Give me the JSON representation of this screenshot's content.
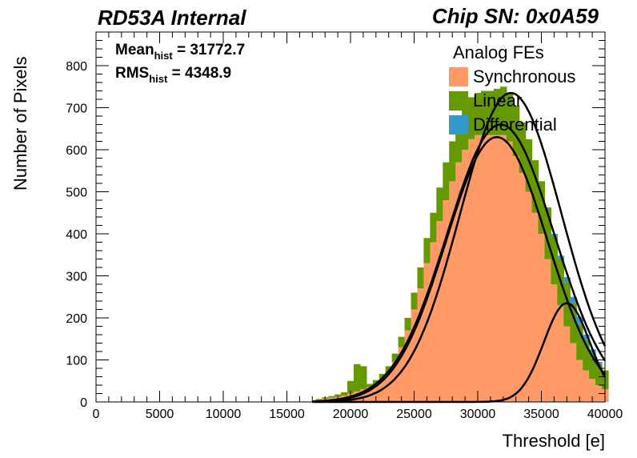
{
  "header": {
    "left_title": "RD53A Internal",
    "right_title": "Chip SN: 0x0A59"
  },
  "stats": {
    "mean_label": "Mean",
    "mean_sub": "hist",
    "mean_value": " = 31772.7",
    "rms_label": "RMS",
    "rms_sub": "hist",
    "rms_value": " = 4348.9"
  },
  "legend": {
    "title": "Analog FEs",
    "entries": [
      {
        "name": "Synchronous",
        "color": "#ff9966"
      },
      {
        "name": "Linear",
        "color": "#669900"
      },
      {
        "name": "Differential",
        "color": "#3399cc"
      }
    ]
  },
  "chart_data": {
    "type": "area",
    "xlabel": "Threshold [e]",
    "ylabel": "Number of Pixels",
    "xlim": [
      0,
      40000
    ],
    "ylim": [
      0,
      880
    ],
    "xticks": [
      0,
      5000,
      10000,
      15000,
      20000,
      25000,
      30000,
      35000,
      40000
    ],
    "yticks": [
      0,
      100,
      200,
      300,
      400,
      500,
      600,
      700,
      800
    ],
    "stacked": true,
    "x": [
      17500,
      18000,
      18500,
      19000,
      19500,
      20000,
      20500,
      21000,
      21500,
      22000,
      22500,
      23000,
      23500,
      24000,
      24500,
      25000,
      25500,
      26000,
      26500,
      27000,
      27500,
      28000,
      28500,
      29000,
      29500,
      30000,
      30500,
      31000,
      31500,
      32000,
      32500,
      33000,
      33500,
      34000,
      34500,
      35000,
      35500,
      36000,
      36500,
      37000,
      37500,
      38000,
      38500,
      39000,
      39500,
      40000
    ],
    "series": [
      {
        "name": "Synchronous",
        "values": [
          5,
          8,
          10,
          12,
          15,
          20,
          25,
          30,
          35,
          42,
          55,
          70,
          95,
          130,
          170,
          220,
          270,
          330,
          380,
          430,
          480,
          525,
          570,
          600,
          625,
          635,
          635,
          635,
          635,
          635,
          620,
          585,
          545,
          500,
          450,
          400,
          340,
          280,
          230,
          180,
          140,
          100,
          75,
          55,
          40,
          30
        ]
      },
      {
        "name": "Linear",
        "values": [
          2,
          3,
          4,
          6,
          8,
          30,
          65,
          55,
          8,
          10,
          12,
          15,
          20,
          25,
          30,
          40,
          50,
          60,
          70,
          80,
          90,
          95,
          100,
          100,
          100,
          100,
          105,
          105,
          110,
          115,
          115,
          120,
          120,
          125,
          125,
          125,
          120,
          115,
          110,
          105,
          95,
          85,
          70,
          60,
          50,
          45
        ]
      },
      {
        "name": "Differential",
        "values": [
          0,
          0,
          0,
          0,
          0,
          0,
          0,
          0,
          0,
          0,
          0,
          0,
          0,
          0,
          0,
          0,
          0,
          0,
          0,
          0,
          0,
          0,
          0,
          0,
          0,
          0,
          0,
          0,
          0,
          0,
          0,
          0,
          0,
          0,
          0,
          0,
          3,
          5,
          8,
          12,
          15,
          18,
          15,
          10,
          5,
          0
        ]
      }
    ],
    "fits": [
      {
        "name": "Synchronous fit",
        "mean": 31500,
        "sigma": 4000,
        "amplitude": 630
      },
      {
        "name": "Linear fit",
        "mean": 32600,
        "sigma": 4000,
        "amplitude": 735
      },
      {
        "name": "Combined fit",
        "mean": 31800,
        "sigma": 4200,
        "amplitude": 660
      },
      {
        "name": "Differential fit",
        "mean": 37000,
        "sigma": 1800,
        "amplitude": 235
      }
    ]
  }
}
